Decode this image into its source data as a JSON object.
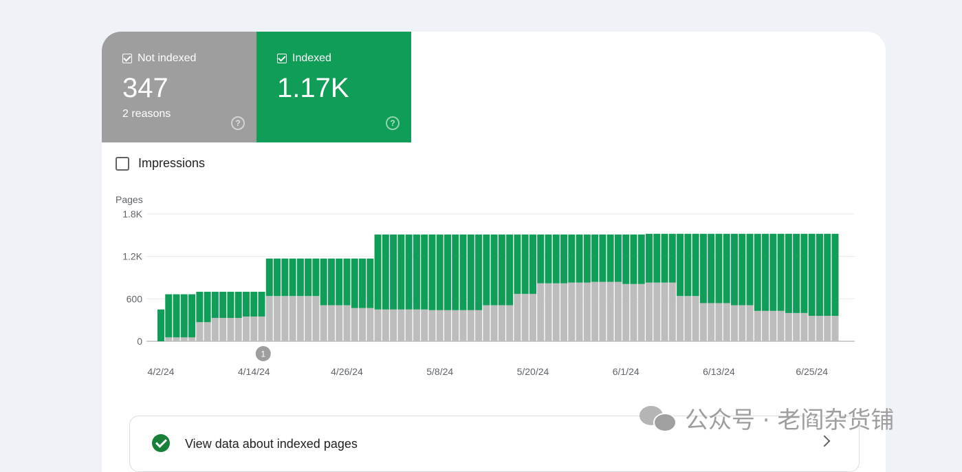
{
  "tiles": {
    "not_indexed": {
      "label": "Not indexed",
      "value": "347",
      "sub": "2 reasons",
      "color": "#9e9e9e"
    },
    "indexed": {
      "label": "Indexed",
      "value": "1.17K",
      "color": "#0f9d58"
    }
  },
  "impressions_label": "Impressions",
  "annotation_label": "1",
  "link_card": {
    "label": "View data about indexed pages"
  },
  "watermark": "公众号 · 老阎杂货铺",
  "chart_data": {
    "type": "bar",
    "stacked": true,
    "ylabel": "Pages",
    "ylim": [
      0,
      1800
    ],
    "yticks": [
      {
        "value": 0,
        "label": "0"
      },
      {
        "value": 600,
        "label": "600"
      },
      {
        "value": 1200,
        "label": "1.2K"
      },
      {
        "value": 1800,
        "label": "1.8K"
      }
    ],
    "xticks": [
      {
        "index": 0,
        "label": "4/2/24"
      },
      {
        "index": 12,
        "label": "4/14/24"
      },
      {
        "index": 24,
        "label": "4/26/24"
      },
      {
        "index": 36,
        "label": "5/8/24"
      },
      {
        "index": 48,
        "label": "5/20/24"
      },
      {
        "index": 60,
        "label": "6/1/24"
      },
      {
        "index": 72,
        "label": "6/13/24"
      },
      {
        "index": 84,
        "label": "6/25/24"
      }
    ],
    "annotation_index": 14,
    "series": [
      {
        "name": "Not indexed",
        "color": "#bdbdbd",
        "values": [
          0,
          55,
          55,
          55,
          55,
          270,
          270,
          330,
          330,
          330,
          330,
          350,
          350,
          350,
          640,
          640,
          640,
          640,
          640,
          640,
          640,
          510,
          510,
          510,
          510,
          470,
          470,
          470,
          450,
          450,
          450,
          450,
          450,
          450,
          450,
          440,
          440,
          440,
          440,
          440,
          440,
          440,
          510,
          510,
          510,
          510,
          670,
          670,
          670,
          820,
          820,
          820,
          820,
          830,
          830,
          830,
          840,
          840,
          840,
          840,
          810,
          810,
          810,
          830,
          830,
          830,
          830,
          640,
          640,
          640,
          540,
          540,
          540,
          540,
          510,
          510,
          510,
          430,
          430,
          430,
          430,
          400,
          400,
          400,
          360,
          360,
          360,
          360
        ]
      },
      {
        "name": "Indexed",
        "color": "#0f9d58",
        "values": [
          450,
          610,
          610,
          610,
          610,
          430,
          430,
          370,
          370,
          370,
          370,
          350,
          350,
          350,
          530,
          530,
          530,
          530,
          530,
          530,
          530,
          660,
          660,
          660,
          660,
          700,
          700,
          700,
          1060,
          1060,
          1060,
          1060,
          1060,
          1060,
          1060,
          1070,
          1070,
          1070,
          1070,
          1070,
          1070,
          1070,
          1000,
          1000,
          1000,
          1000,
          840,
          840,
          840,
          690,
          690,
          690,
          690,
          680,
          680,
          680,
          670,
          670,
          670,
          670,
          700,
          700,
          700,
          690,
          690,
          690,
          690,
          880,
          880,
          880,
          980,
          980,
          980,
          980,
          1010,
          1010,
          1010,
          1090,
          1090,
          1090,
          1090,
          1120,
          1120,
          1120,
          1160,
          1160,
          1160,
          1160
        ]
      }
    ]
  }
}
